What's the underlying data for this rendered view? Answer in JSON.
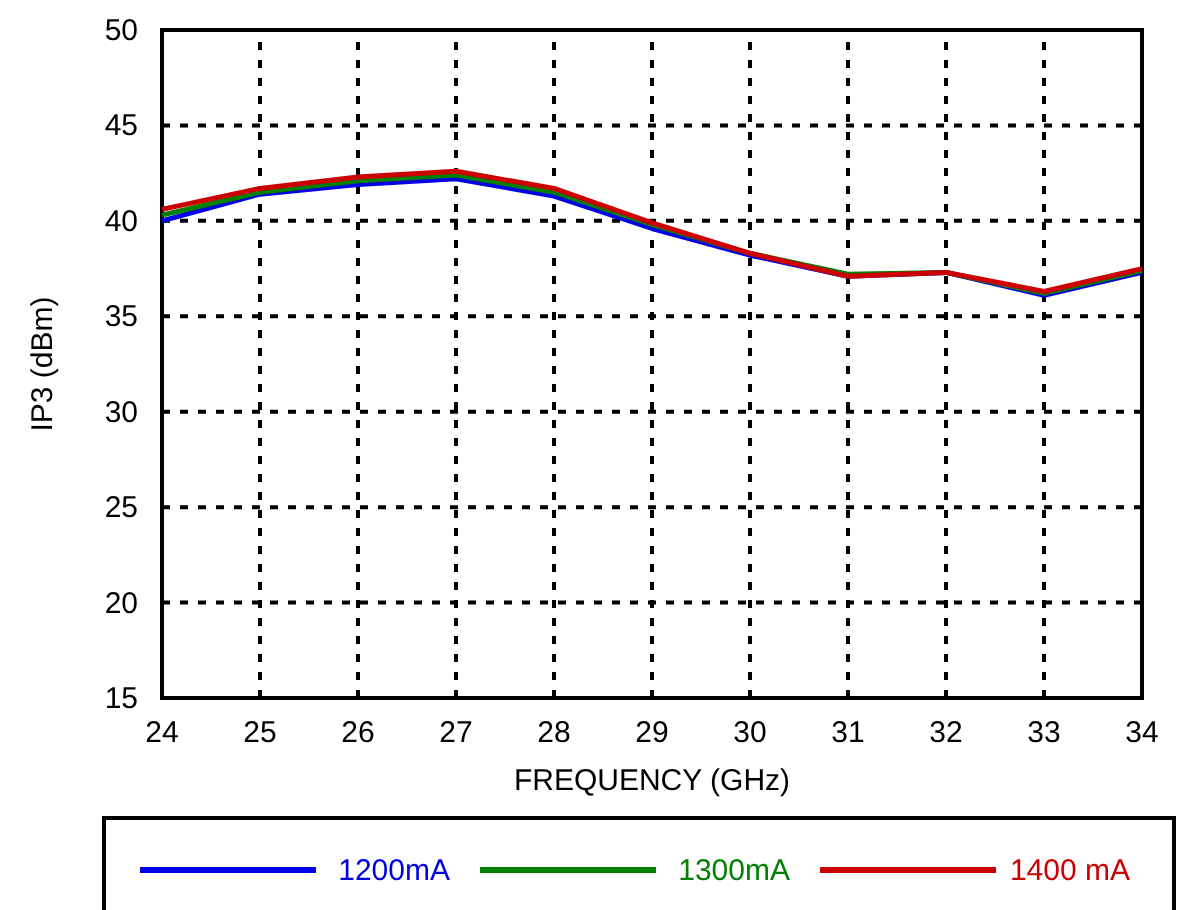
{
  "chart_data": {
    "type": "line",
    "xlabel": "FREQUENCY (GHz)",
    "ylabel": "IP3 (dBm)",
    "x": [
      24,
      25,
      26,
      27,
      28,
      29,
      30,
      31,
      32,
      33,
      34
    ],
    "xlim": [
      24,
      34
    ],
    "xticks": [
      24,
      25,
      26,
      27,
      28,
      29,
      30,
      31,
      32,
      33,
      34
    ],
    "ylim": [
      15,
      50
    ],
    "yticks": [
      15,
      20,
      25,
      30,
      35,
      40,
      45,
      50
    ],
    "grid": true,
    "legend": "bottom",
    "line_style": "solid",
    "series": [
      {
        "name": "1200mA",
        "color": "#0000e6",
        "values": [
          40.0,
          41.4,
          41.9,
          42.2,
          41.3,
          39.6,
          38.2,
          37.1,
          37.3,
          36.1,
          37.3
        ]
      },
      {
        "name": "1300mA",
        "color": "#008000",
        "values": [
          40.3,
          41.5,
          42.1,
          42.4,
          41.5,
          39.8,
          38.3,
          37.2,
          37.3,
          36.2,
          37.4
        ]
      },
      {
        "name": "1400 mA",
        "color": "#cc0000",
        "values": [
          40.6,
          41.7,
          42.3,
          42.6,
          41.7,
          39.9,
          38.3,
          37.1,
          37.3,
          36.3,
          37.5
        ]
      }
    ]
  }
}
